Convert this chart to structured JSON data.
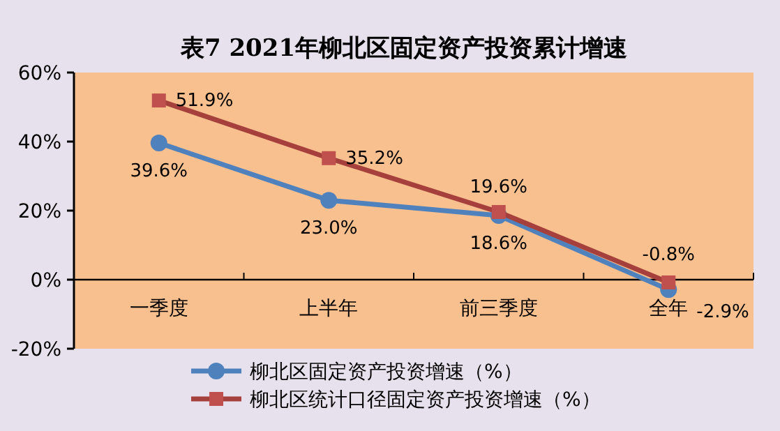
{
  "chart_data": {
    "type": "line",
    "title": "表7  2021年柳北区固定资产投资累计增速",
    "categories": [
      "一季度",
      "上半年",
      "前三季度",
      "全年"
    ],
    "series": [
      {
        "name": "柳北区固定资产投资增速（%）",
        "color": "#4f81bd",
        "marker": "circle",
        "values": [
          39.6,
          23.0,
          18.6,
          -2.9
        ],
        "value_labels": [
          "39.6%",
          "23.0%",
          "18.6%",
          "-2.9%"
        ]
      },
      {
        "name": "柳北区统计口径固定资产投资增速（%）",
        "color": "#a5403c",
        "marker": "square",
        "values": [
          51.9,
          35.2,
          19.6,
          -0.8
        ],
        "value_labels": [
          "51.9%",
          "35.2%",
          "19.6%",
          "-0.8%"
        ]
      }
    ],
    "ylim": [
      -20,
      60
    ],
    "yticks": [
      {
        "value": -20,
        "label": "-20%"
      },
      {
        "value": 0,
        "label": "0%"
      },
      {
        "value": 20,
        "label": "20%"
      },
      {
        "value": 40,
        "label": "40%"
      },
      {
        "value": 60,
        "label": "60%"
      }
    ],
    "legend": "bottom",
    "grid": false
  }
}
